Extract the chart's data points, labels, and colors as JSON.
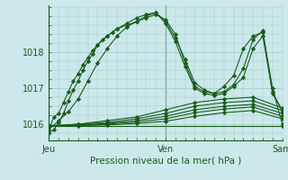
{
  "xlabel": "Pression niveau de la mer( hPa )",
  "bg_color": "#cce8eb",
  "grid_color": "#a0c8cc",
  "line_color": "#1a5c1a",
  "tick_label_color": "#1a5c1a",
  "xlabel_color": "#1a5c1a",
  "ylim": [
    1015.55,
    1019.3
  ],
  "xlim": [
    0,
    48
  ],
  "yticks": [
    1016,
    1017,
    1018
  ],
  "xtick_positions": [
    0,
    24,
    48
  ],
  "xtick_labels": [
    "Jeu",
    "Ven",
    "Sam"
  ],
  "series": [
    {
      "x": [
        0,
        1,
        2,
        3,
        4,
        5,
        6,
        7,
        8,
        9,
        10,
        11,
        12,
        13,
        14,
        16,
        18,
        20,
        22,
        24,
        26,
        28,
        30,
        32,
        34,
        36,
        38,
        40,
        42,
        44,
        46,
        48
      ],
      "y": [
        1015.85,
        1016.2,
        1016.3,
        1016.6,
        1016.9,
        1017.2,
        1017.4,
        1017.65,
        1017.85,
        1018.05,
        1018.2,
        1018.35,
        1018.45,
        1018.55,
        1018.65,
        1018.75,
        1018.85,
        1019.0,
        1019.1,
        1018.85,
        1018.4,
        1017.8,
        1017.15,
        1016.95,
        1016.85,
        1017.05,
        1017.35,
        1018.1,
        1018.45,
        1018.55,
        1017.0,
        1016.0
      ],
      "marker": "D",
      "markersize": 2.2
    },
    {
      "x": [
        0,
        2,
        4,
        6,
        8,
        10,
        12,
        14,
        16,
        18,
        20,
        22,
        24,
        26,
        28,
        30,
        32,
        34,
        36,
        38,
        40,
        42,
        44,
        46,
        48
      ],
      "y": [
        1015.85,
        1016.1,
        1016.35,
        1016.7,
        1017.2,
        1017.7,
        1018.1,
        1018.45,
        1018.7,
        1018.85,
        1018.95,
        1019.05,
        1018.9,
        1018.5,
        1017.7,
        1017.05,
        1016.9,
        1016.85,
        1016.9,
        1017.1,
        1017.55,
        1018.35,
        1018.6,
        1016.85,
        1016.4
      ],
      "marker": "D",
      "markersize": 2.2
    },
    {
      "x": [
        0,
        1,
        2,
        3,
        4,
        5,
        6,
        7,
        8,
        9,
        10,
        12,
        14,
        16,
        18,
        20,
        22,
        24,
        26,
        28,
        30,
        32,
        34,
        36,
        38,
        40,
        42,
        44,
        46,
        48
      ],
      "y": [
        1015.75,
        1015.85,
        1016.05,
        1016.3,
        1016.65,
        1016.95,
        1017.2,
        1017.5,
        1017.75,
        1017.95,
        1018.2,
        1018.45,
        1018.65,
        1018.8,
        1018.95,
        1019.05,
        1019.1,
        1018.8,
        1018.3,
        1017.6,
        1017.0,
        1016.85,
        1016.8,
        1016.85,
        1017.05,
        1017.3,
        1018.1,
        1018.45,
        1016.9,
        1016.35
      ],
      "marker": "D",
      "markersize": 2.2
    },
    {
      "x": [
        0,
        6,
        12,
        18,
        24,
        30,
        36,
        42,
        48
      ],
      "y": [
        1015.95,
        1016.0,
        1016.1,
        1016.2,
        1016.4,
        1016.6,
        1016.7,
        1016.75,
        1016.45
      ],
      "marker": "D",
      "markersize": 2.2
    },
    {
      "x": [
        0,
        6,
        12,
        18,
        24,
        30,
        36,
        42,
        48
      ],
      "y": [
        1015.95,
        1016.0,
        1016.05,
        1016.15,
        1016.3,
        1016.5,
        1016.6,
        1016.65,
        1016.38
      ],
      "marker": "D",
      "markersize": 2.2
    },
    {
      "x": [
        0,
        6,
        12,
        18,
        24,
        30,
        36,
        42,
        48
      ],
      "y": [
        1015.95,
        1015.98,
        1016.02,
        1016.1,
        1016.22,
        1016.4,
        1016.5,
        1016.55,
        1016.3
      ],
      "marker": "D",
      "markersize": 2.2
    },
    {
      "x": [
        0,
        6,
        12,
        18,
        24,
        30,
        36,
        42,
        48
      ],
      "y": [
        1015.95,
        1015.97,
        1016.0,
        1016.06,
        1016.15,
        1016.32,
        1016.42,
        1016.48,
        1016.22
      ],
      "marker": "D",
      "markersize": 2.2
    },
    {
      "x": [
        0,
        6,
        12,
        18,
        24,
        30,
        36,
        42,
        48
      ],
      "y": [
        1015.95,
        1015.96,
        1015.98,
        1016.02,
        1016.08,
        1016.22,
        1016.32,
        1016.38,
        1016.15
      ],
      "marker": "D",
      "markersize": 2.2
    },
    {
      "x": [
        0,
        48
      ],
      "y": [
        1015.95,
        1015.95
      ],
      "marker": "D",
      "markersize": 2.2
    }
  ]
}
